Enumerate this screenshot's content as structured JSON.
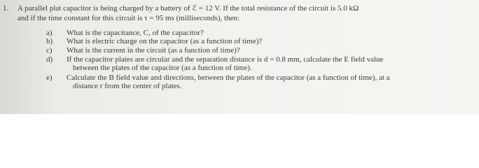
{
  "question": {
    "number": "1.",
    "stem_lines": [
      "A parallel plat capacitor is being charged by a battery of ℰ = 12 V. If the total resistance of the circuit is 5.0 kΩ",
      "and if the time constant for this circuit is τ = 95 ms (milliseconds), then:"
    ],
    "items": [
      {
        "label": "a)",
        "lines": [
          "What is the capacitance, C, of the capacitor?"
        ]
      },
      {
        "label": "b)",
        "lines": [
          "What is electric charge on the capacitor (as a function of time)?"
        ]
      },
      {
        "label": "c)",
        "lines": [
          "What is the current in the circuit (as a function of time)?"
        ]
      },
      {
        "label": "d)",
        "lines": [
          "If the capacitor plates are circular and the separation distance is d = 0.8 mm, calculate the E field value",
          "between the plates of the capacitor (as a function of time)."
        ]
      },
      {
        "label": "e)",
        "lines": [
          "Calculate the B field value and directions, between the plates of the capacitor (as a function of time), at a",
          "distance r from the center of plates."
        ]
      }
    ]
  }
}
